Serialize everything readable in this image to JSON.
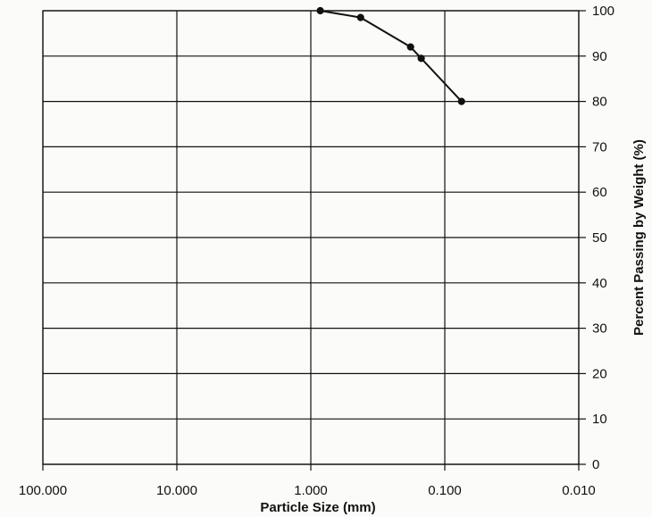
{
  "chart_data": {
    "type": "line",
    "title": "",
    "xlabel": "Particle Size (mm)",
    "ylabel": "Percent Passing by Weight (%)",
    "x_scale": "log",
    "x_reversed": true,
    "xlim": [
      100,
      0.01
    ],
    "ylim": [
      0,
      100
    ],
    "grid": true,
    "legend": "none",
    "y_axis_side": "right",
    "x_ticks": [
      100,
      10,
      1,
      0.1,
      0.01
    ],
    "x_tick_labels": [
      "100.000",
      "10.000",
      "1.000",
      "0.100",
      "0.010"
    ],
    "y_ticks": [
      0,
      10,
      20,
      30,
      40,
      50,
      60,
      70,
      80,
      90,
      100
    ],
    "y_tick_labels": [
      "0",
      "10",
      "20",
      "30",
      "40",
      "50",
      "60",
      "70",
      "80",
      "90",
      "100"
    ],
    "series": [
      {
        "x": [
          0.85,
          0.425,
          0.18,
          0.15,
          0.075
        ],
        "y": [
          100,
          98.5,
          92,
          89.5,
          80
        ],
        "color": "#111111"
      }
    ]
  }
}
